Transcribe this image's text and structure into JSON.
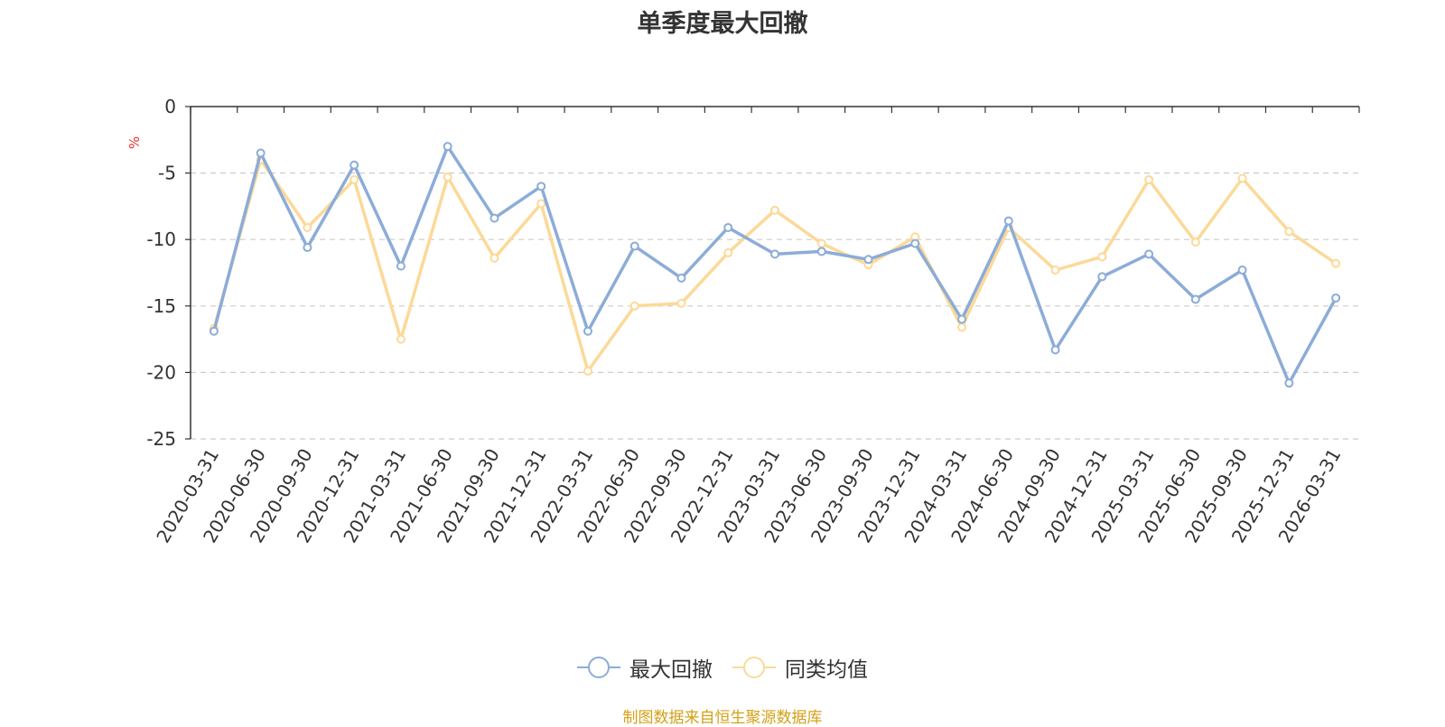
{
  "title": "单季度最大回撤",
  "source_note": "制图数据来自恒生聚源数据库",
  "chart_data": {
    "type": "line",
    "title": "单季度最大回撤",
    "xlabel": "",
    "ylabel": "%",
    "ylim": [
      -25,
      0
    ],
    "yticks": [
      0,
      -5,
      -10,
      -15,
      -20,
      -25
    ],
    "grid": true,
    "legend_position": "bottom",
    "categories": [
      "2020-03-31",
      "2020-06-30",
      "2020-09-30",
      "2020-12-31",
      "2021-03-31",
      "2021-06-30",
      "2021-09-30",
      "2021-12-31",
      "2022-03-31",
      "2022-06-30",
      "2022-09-30",
      "2022-12-31",
      "2023-03-31",
      "2023-06-30",
      "2023-09-30",
      "2023-12-31",
      "2024-03-31",
      "2024-06-30",
      "2024-09-30",
      "2024-12-31",
      "2025-03-31",
      "2025-06-30",
      "2025-09-30",
      "2025-12-31",
      "2026-03-31"
    ],
    "series": [
      {
        "name": "最大回撤",
        "color": "#8cacd8",
        "values": [
          -16.9,
          -3.5,
          -10.6,
          -4.4,
          -12.0,
          -3.0,
          -8.4,
          -6.0,
          -16.9,
          -10.5,
          -12.9,
          -9.1,
          -11.1,
          -10.9,
          -11.5,
          -10.3,
          -16.0,
          -8.6,
          -18.3,
          -12.8,
          -11.1,
          -14.5,
          -12.3,
          -20.8,
          -14.4
        ]
      },
      {
        "name": "同类均值",
        "color": "#fcd998",
        "values": [
          -16.7,
          -4.0,
          -9.1,
          -5.5,
          -17.5,
          -5.3,
          -11.4,
          -7.3,
          -19.9,
          -15.0,
          -14.8,
          -11.0,
          -7.8,
          -10.3,
          -11.9,
          -9.8,
          -16.6,
          -9.1,
          -12.3,
          -11.3,
          -5.5,
          -10.2,
          -5.4,
          -9.4,
          -11.8
        ]
      }
    ]
  }
}
